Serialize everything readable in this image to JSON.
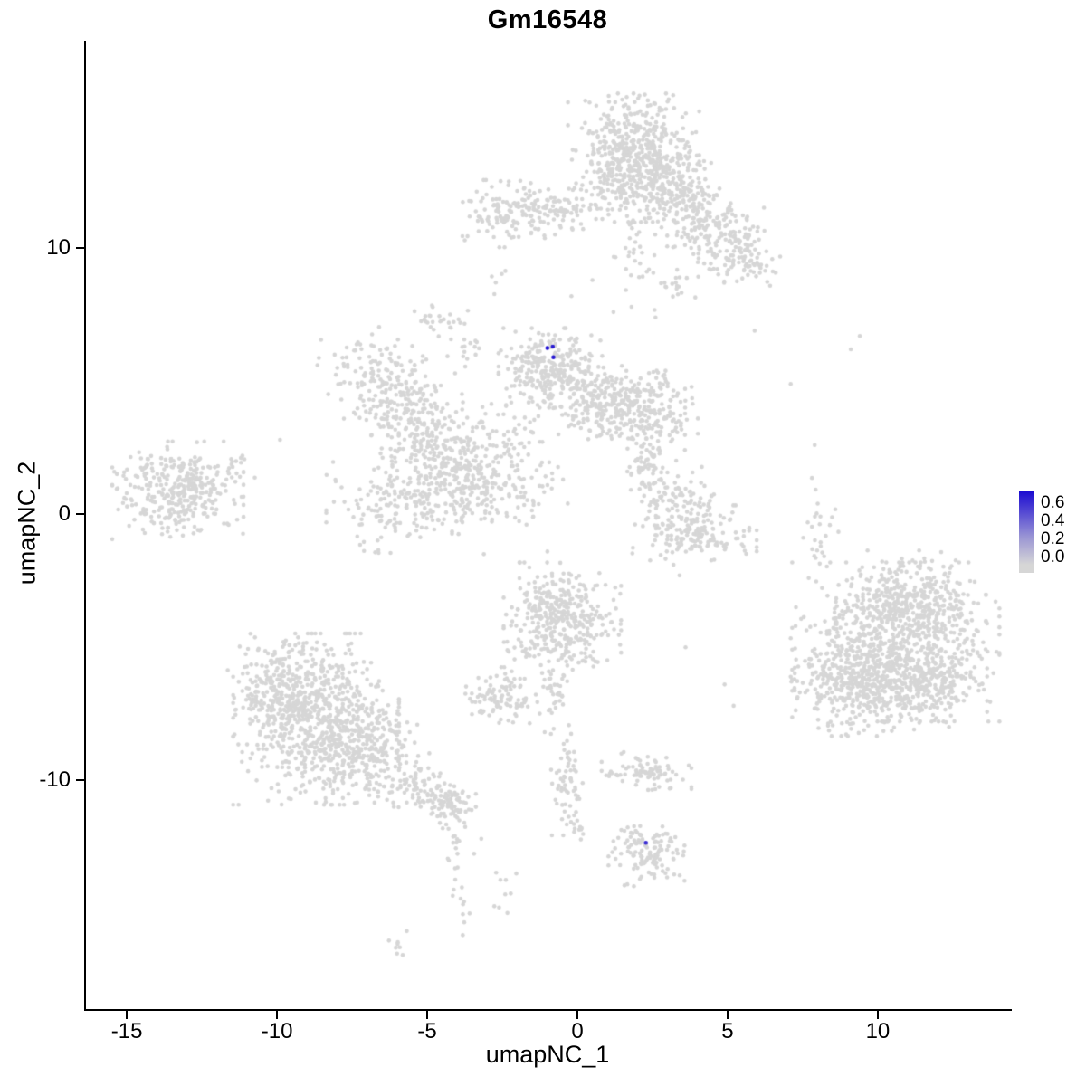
{
  "chart_data": {
    "type": "scatter",
    "title": "Gm16548",
    "xlabel": "umapNC_1",
    "ylabel": "umapNC_2",
    "xlim": [
      -16.36,
      14.37
    ],
    "ylim": [
      -18.6,
      17.8
    ],
    "xticks": [
      -15,
      -10,
      -5,
      0,
      5,
      10
    ],
    "yticks": [
      -10,
      0,
      10
    ],
    "grid": false,
    "background": "#ffffff",
    "point_radius_px": 2.3,
    "colors": {
      "low": "#d6d6d6",
      "high": "#1b0bd1",
      "axis": "#000000",
      "text": "#000000"
    },
    "legend": {
      "position": "right",
      "ticks": [
        "0.6",
        "0.4",
        "0.2",
        "0.0"
      ],
      "vmin": 0.0,
      "vmax": 0.65
    },
    "clusters": [
      {
        "cx": 1.87,
        "cy": 13.4,
        "rx": 0.95,
        "ry": 1.05,
        "n": 600
      },
      {
        "cx": 3.4,
        "cy": 12.0,
        "rx": 0.7,
        "ry": 0.6,
        "n": 150
      },
      {
        "cx": 4.6,
        "cy": 10.6,
        "rx": 0.7,
        "ry": 0.6,
        "n": 150
      },
      {
        "cx": 5.6,
        "cy": 9.6,
        "rx": 0.5,
        "ry": 0.5,
        "n": 80
      },
      {
        "cx": 1.9,
        "cy": 9.9,
        "rx": 0.3,
        "ry": 0.8,
        "n": 30
      },
      {
        "cx": 3.2,
        "cy": 8.6,
        "rx": 0.4,
        "ry": 0.4,
        "n": 20
      },
      {
        "cx": -2.1,
        "cy": 11.3,
        "rx": 0.9,
        "ry": 0.55,
        "n": 150
      },
      {
        "cx": -0.6,
        "cy": 11.4,
        "rx": 0.55,
        "ry": 0.4,
        "n": 50
      },
      {
        "cx": -2.9,
        "cy": 8.8,
        "rx": 0.25,
        "ry": 0.25,
        "n": 5
      },
      {
        "cx": -4.5,
        "cy": 7.3,
        "rx": 0.4,
        "ry": 0.4,
        "n": 28
      },
      {
        "cx": -3.7,
        "cy": 5.9,
        "rx": 0.3,
        "ry": 0.6,
        "n": 15
      },
      {
        "cx": -0.9,
        "cy": 5.5,
        "rx": 0.75,
        "ry": 0.65,
        "n": 280
      },
      {
        "cx": 0.9,
        "cy": 4.2,
        "rx": 0.8,
        "ry": 0.6,
        "n": 220
      },
      {
        "cx": 2.4,
        "cy": 3.9,
        "rx": 0.7,
        "ry": 0.65,
        "n": 180
      },
      {
        "cx": -6.7,
        "cy": 5.2,
        "rx": 0.85,
        "ry": 0.8,
        "n": 130
      },
      {
        "cx": -5.8,
        "cy": 4.0,
        "rx": 0.7,
        "ry": 0.7,
        "n": 100
      },
      {
        "cx": -5.0,
        "cy": 3.0,
        "rx": 0.8,
        "ry": 0.8,
        "n": 120
      },
      {
        "cx": -4.2,
        "cy": 2.0,
        "rx": 0.9,
        "ry": 0.8,
        "n": 130
      },
      {
        "cx": -5.6,
        "cy": 0.5,
        "rx": 1.2,
        "ry": 0.85,
        "n": 220
      },
      {
        "cx": -3.2,
        "cy": 1.1,
        "rx": 0.8,
        "ry": 0.6,
        "n": 90
      },
      {
        "cx": -2.2,
        "cy": 2.8,
        "rx": 0.7,
        "ry": 0.9,
        "n": 70
      },
      {
        "cx": -1.8,
        "cy": 0.8,
        "rx": 0.7,
        "ry": 1.0,
        "n": 45
      },
      {
        "cx": -13.3,
        "cy": 0.9,
        "rx": 0.95,
        "ry": 0.8,
        "n": 350
      },
      {
        "cx": -11.2,
        "cy": 1.9,
        "rx": 0.4,
        "ry": 0.4,
        "n": 12
      },
      {
        "cx": 2.5,
        "cy": 1.6,
        "rx": 0.5,
        "ry": 0.6,
        "n": 70
      },
      {
        "cx": 3.3,
        "cy": 0.4,
        "rx": 0.6,
        "ry": 0.6,
        "n": 100
      },
      {
        "cx": 3.9,
        "cy": -0.7,
        "rx": 0.9,
        "ry": 0.45,
        "n": 140
      },
      {
        "cx": 8.0,
        "cy": -0.8,
        "rx": 0.3,
        "ry": 1.0,
        "n": 24
      },
      {
        "cx": 10.6,
        "cy": -4.8,
        "rx": 1.5,
        "ry": 1.3,
        "n": 700
      },
      {
        "cx": 9.4,
        "cy": -6.5,
        "rx": 1.0,
        "ry": 0.8,
        "n": 350
      },
      {
        "cx": 11.8,
        "cy": -6.4,
        "rx": 0.8,
        "ry": 0.8,
        "n": 200
      },
      {
        "cx": 11.3,
        "cy": -3.2,
        "rx": 1.0,
        "ry": 0.8,
        "n": 250
      },
      {
        "cx": -0.5,
        "cy": -4.0,
        "rx": 0.85,
        "ry": 0.95,
        "n": 400
      },
      {
        "cx": -0.8,
        "cy": -6.8,
        "rx": 0.2,
        "ry": 0.65,
        "n": 35
      },
      {
        "cx": -0.3,
        "cy": -10.0,
        "rx": 0.25,
        "ry": 0.9,
        "n": 60
      },
      {
        "cx": -0.15,
        "cy": -11.8,
        "rx": 0.25,
        "ry": 0.4,
        "n": 12
      },
      {
        "cx": -2.6,
        "cy": -6.9,
        "rx": 0.55,
        "ry": 0.5,
        "n": 100
      },
      {
        "cx": -8.7,
        "cy": -7.7,
        "rx": 1.2,
        "ry": 1.4,
        "n": 700
      },
      {
        "cx": -9.8,
        "cy": -6.7,
        "rx": 0.8,
        "ry": 0.9,
        "n": 200
      },
      {
        "cx": -7.0,
        "cy": -9.0,
        "rx": 0.9,
        "ry": 0.8,
        "n": 220
      },
      {
        "cx": -5.3,
        "cy": -10.2,
        "rx": 0.5,
        "ry": 0.4,
        "n": 70
      },
      {
        "cx": -4.3,
        "cy": -10.9,
        "rx": 0.4,
        "ry": 0.4,
        "n": 80
      },
      {
        "cx": -4.05,
        "cy": -12.5,
        "rx": 0.15,
        "ry": 0.7,
        "n": 15
      },
      {
        "cx": -3.85,
        "cy": -14.6,
        "rx": 0.2,
        "ry": 0.8,
        "n": 12
      },
      {
        "cx": -6.1,
        "cy": -16.2,
        "rx": 0.3,
        "ry": 0.25,
        "n": 8
      },
      {
        "cx": -2.5,
        "cy": -14.0,
        "rx": 0.25,
        "ry": 0.45,
        "n": 9
      },
      {
        "cx": 2.3,
        "cy": -9.6,
        "rx": 0.65,
        "ry": 0.35,
        "n": 85
      },
      {
        "cx": 2.3,
        "cy": -12.6,
        "rx": 0.55,
        "ry": 0.6,
        "n": 130
      }
    ],
    "extra_points": [
      [
        7.1,
        4.9
      ],
      [
        9.4,
        6.7
      ],
      [
        9.1,
        6.2
      ],
      [
        7.9,
        2.6
      ],
      [
        8.0,
        0.4
      ],
      [
        8.1,
        -1.2
      ],
      [
        7.7,
        -2.4
      ],
      [
        5.2,
        -7.2
      ],
      [
        4.9,
        -6.4
      ],
      [
        3.6,
        -5.0
      ],
      [
        3.2,
        -1.9
      ],
      [
        3.4,
        -2.3
      ],
      [
        -0.2,
        8.2
      ],
      [
        0.5,
        8.8
      ],
      [
        1.2,
        7.6
      ],
      [
        1.8,
        7.8
      ],
      [
        -9.9,
        2.8
      ],
      [
        -1.6,
        -2.0
      ],
      [
        5.9,
        6.9
      ],
      [
        2.6,
        7.4
      ],
      [
        -1.0,
        -1.4
      ],
      [
        -3.2,
        -12.2
      ]
    ],
    "highlight_points": [
      {
        "x": -1.0,
        "y": 6.25,
        "value": 0.65
      },
      {
        "x": -0.82,
        "y": 6.3,
        "value": 0.6
      },
      {
        "x": -0.8,
        "y": 5.9,
        "value": 0.62
      },
      {
        "x": 2.28,
        "y": -12.35,
        "value": 0.55
      }
    ]
  }
}
